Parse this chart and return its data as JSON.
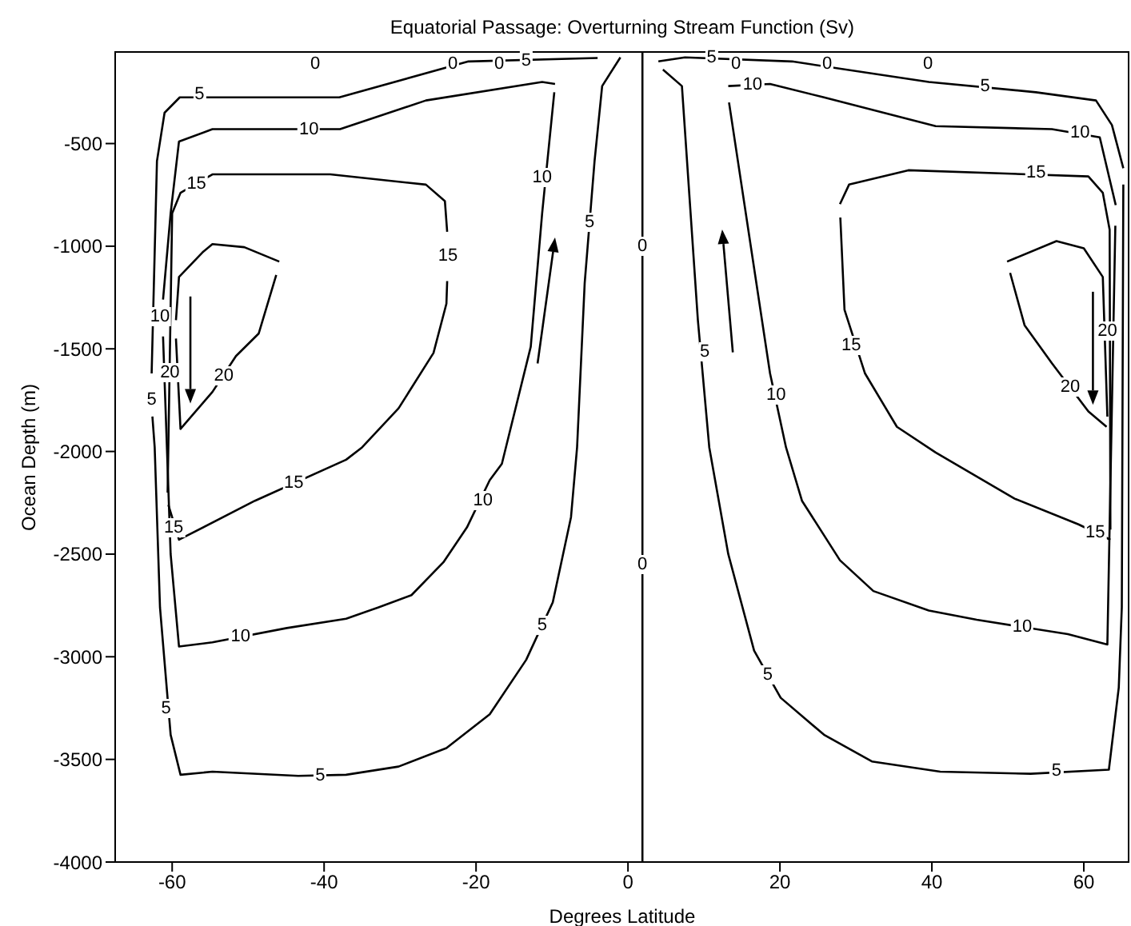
{
  "chart_data": {
    "type": "line",
    "title": "Equatorial Passage: Overturning Stream Function (Sv)",
    "xlabel": "Degrees Latitude",
    "ylabel": "Ocean Depth (m)",
    "xlim": [
      -67.5,
      66
    ],
    "ylim": [
      -4000,
      -50
    ],
    "xticks": [
      -60,
      -40,
      -20,
      0,
      20,
      40,
      60
    ],
    "yticks": [
      -500,
      -1000,
      -1500,
      -2000,
      -2500,
      -3000,
      -3500,
      -4000
    ],
    "marker": "none",
    "line_style": "solid",
    "grid": false,
    "ref_lines": [
      {
        "axis": "x",
        "value": 1.9
      }
    ],
    "series": [
      {
        "color": "#000000",
        "x": [
          -4,
          -21,
          -38,
          -59,
          -61,
          -62,
          -62.7
        ],
        "values": [
          -83,
          -100,
          -275,
          -275,
          -350,
          -585,
          -1620
        ]
      },
      {
        "color": "#000000",
        "x": [
          -62.6,
          -62.3,
          -61.6,
          -60.2,
          -58.9,
          -54.7,
          -43.4,
          -37.1,
          -30.2,
          -23.9,
          -18.2,
          -13.4,
          -9.9,
          -7.5,
          -6.7,
          -5.7,
          -4.4,
          -3.4,
          -1
        ],
        "values": [
          -1830,
          -1980,
          -2760,
          -3380,
          -3575,
          -3560,
          -3580,
          -3575,
          -3535,
          -3445,
          -3280,
          -3015,
          -2735,
          -2320,
          -1980,
          -1180,
          -585,
          -220,
          -80
        ]
      },
      {
        "color": "#000000",
        "x": [
          -9.6,
          -11.3,
          -26.6,
          -37.9,
          -54.7,
          -59.1,
          -60.2,
          -61.2
        ],
        "values": [
          -210,
          -200,
          -290,
          -430,
          -430,
          -490,
          -840,
          -1260
        ]
      },
      {
        "color": "#000000",
        "x": [
          -61.2,
          -60.2,
          -59.1,
          -54.7,
          -44.9,
          -37.1,
          -32.9,
          -28.5,
          -24.3,
          -21.2,
          -18.2,
          -16.6,
          -12.8,
          -11.3,
          -9.7
        ],
        "values": [
          -1440,
          -2500,
          -2950,
          -2930,
          -2860,
          -2815,
          -2760,
          -2700,
          -2540,
          -2370,
          -2140,
          -2060,
          -1490,
          -840,
          -250
        ]
      },
      {
        "color": "#000000",
        "x": [
          -23.8,
          -24.1,
          -26.6,
          -39.2,
          -54.7,
          -58.9,
          -60,
          -60.6
        ],
        "values": [
          -930,
          -780,
          -700,
          -650,
          -650,
          -740,
          -840,
          -2200
        ]
      },
      {
        "color": "#000000",
        "x": [
          -60.5,
          -59.1,
          -49.1,
          -37.1,
          -35,
          -30.2,
          -25.6,
          -23.9,
          -23.8
        ],
        "values": [
          -2260,
          -2430,
          -2240,
          -2040,
          -1980,
          -1790,
          -1520,
          -1280,
          -1170
        ]
      },
      {
        "color": "#000000",
        "x": [
          -59.5,
          -59.1,
          -56,
          -54.7,
          -50.5,
          -45.9
        ],
        "values": [
          -1360,
          -1150,
          -1030,
          -990,
          -1005,
          -1075
        ]
      },
      {
        "color": "#000000",
        "x": [
          -46.3,
          -48.6,
          -51.6,
          -54.7,
          -58.9,
          -59.5
        ],
        "values": [
          -1140,
          -1425,
          -1535,
          -1710,
          -1890,
          -1450
        ]
      },
      {
        "color": "#000000",
        "x": [
          4.6,
          7.1,
          9.2,
          10.7,
          13.2,
          16.6,
          20.1,
          25.8,
          32.1,
          41.1,
          53,
          63.3,
          64.6,
          65,
          65.2
        ],
        "values": [
          -140,
          -220,
          -1360,
          -1980,
          -2500,
          -2970,
          -3200,
          -3380,
          -3510,
          -3560,
          -3570,
          -3550,
          -3150,
          -2760,
          -700
        ]
      },
      {
        "color": "#000000",
        "x": [
          65.2,
          63.7,
          61.6,
          53.7,
          39.6,
          21.6,
          7.5,
          4
        ],
        "values": [
          -620,
          -410,
          -290,
          -250,
          -200,
          -100,
          -80,
          -100
        ]
      },
      {
        "color": "#000000",
        "x": [
          13.2,
          18.7,
          25.8,
          40.5,
          55.8,
          62.1,
          64.2
        ],
        "values": [
          -220,
          -210,
          -275,
          -415,
          -430,
          -470,
          -800
        ]
      },
      {
        "color": "#000000",
        "x": [
          64.15,
          63.1,
          57.9,
          45.9,
          39.6,
          32.3,
          27.9,
          22.9,
          20.8,
          18.7,
          13.3
        ],
        "values": [
          -900,
          -2940,
          -2890,
          -2820,
          -2775,
          -2680,
          -2530,
          -2240,
          -1980,
          -1620,
          -300
        ]
      },
      {
        "color": "#000000",
        "x": [
          27.9,
          29.1,
          36.9,
          60.6,
          62.5,
          63.4,
          63.5
        ],
        "values": [
          -795,
          -700,
          -630,
          -660,
          -740,
          -920,
          -2380
        ]
      },
      {
        "color": "#000000",
        "x": [
          63.5,
          59.3,
          50.9,
          40.5,
          35.4,
          31.2,
          28.5,
          27.95
        ],
        "values": [
          -2430,
          -2355,
          -2230,
          -2005,
          -1880,
          -1620,
          -1310,
          -860
        ]
      },
      {
        "color": "#000000",
        "x": [
          49.9,
          56.4,
          60,
          62.5,
          63.1
        ],
        "values": [
          -1075,
          -975,
          -1010,
          -1150,
          -1830
        ]
      },
      {
        "color": "#000000",
        "x": [
          63,
          60.6,
          55.8,
          52.2,
          50.3
        ],
        "values": [
          -1880,
          -1805,
          -1570,
          -1385,
          -1130
        ]
      }
    ],
    "annotations": [
      "0",
      "0",
      "0",
      "0",
      "0",
      "0",
      {
        "text": "5",
        "x": -56.4,
        "y": -259
      },
      {
        "text": "5",
        "x": -13.4,
        "y": -100
      },
      {
        "text": "10",
        "x": -42,
        "y": -430
      },
      {
        "text": "15",
        "x": -56.8,
        "y": -695
      },
      {
        "text": "15",
        "x": -23.7,
        "y": -1051
      },
      {
        "text": "10",
        "x": -11.3,
        "y": -663
      },
      {
        "text": "5",
        "x": -5.05,
        "y": -880
      },
      {
        "text": "10",
        "x": -61.6,
        "y": -1346
      },
      {
        "text": "20",
        "x": -60.3,
        "y": -1618
      },
      {
        "text": "20",
        "x": -53.2,
        "y": -1630
      },
      {
        "text": "5",
        "x": -62.7,
        "y": -1750
      },
      {
        "text": "15",
        "x": -44,
        "y": -2155
      },
      {
        "text": "15",
        "x": -59.8,
        "y": -2370
      },
      {
        "text": "10",
        "x": -19.1,
        "y": -2239
      },
      {
        "text": "10",
        "x": -51,
        "y": -2904
      },
      {
        "text": "5",
        "x": -11.3,
        "y": -2850
      },
      {
        "text": "5",
        "x": -60.8,
        "y": -3250
      },
      {
        "text": "5",
        "x": -40.5,
        "y": -3578
      },
      {
        "text": "0",
        "x": 1.9,
        "y": -997
      },
      {
        "text": "0",
        "x": 1.9,
        "y": -2550
      },
      {
        "text": "5",
        "x": 11,
        "y": -85
      },
      {
        "text": "5",
        "x": 10.1,
        "y": -1517
      },
      {
        "text": "5",
        "x": 18.4,
        "y": -3090
      },
      {
        "text": "10",
        "x": 16.4,
        "y": -213
      },
      {
        "text": "10",
        "x": 19.5,
        "y": -1727
      },
      {
        "text": "5",
        "x": 47,
        "y": -225
      },
      {
        "text": "10",
        "x": 59.5,
        "y": -446
      },
      {
        "text": "15",
        "x": 53.7,
        "y": -640
      },
      {
        "text": "15",
        "x": 29.4,
        "y": -1480
      },
      {
        "text": "20",
        "x": 63.1,
        "y": -1416
      },
      {
        "text": "20",
        "x": 58.2,
        "y": -1688
      },
      {
        "text": "15",
        "x": 61.5,
        "y": -2395
      },
      {
        "text": "10",
        "x": 51.9,
        "y": -2855
      },
      {
        "text": "5",
        "x": 56.4,
        "y": -3559
      }
    ]
  }
}
